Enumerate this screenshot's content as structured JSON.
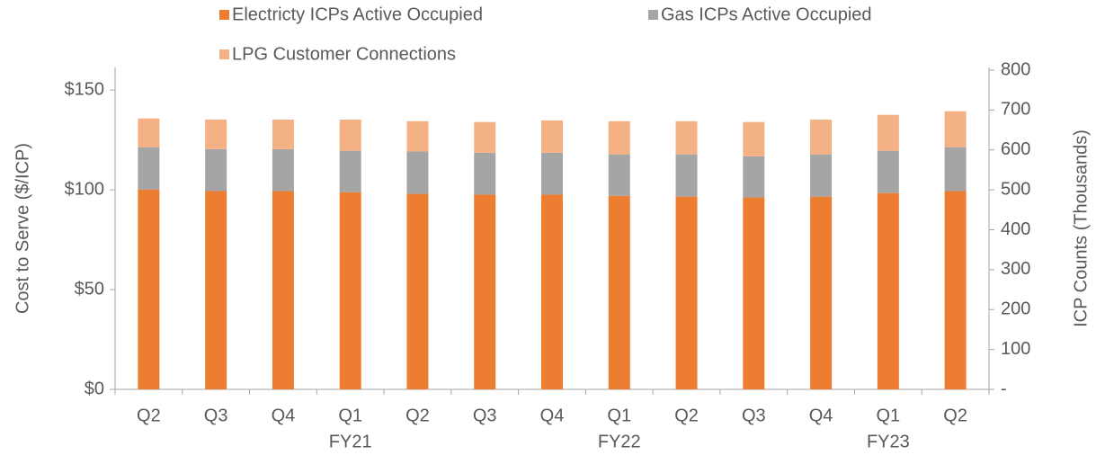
{
  "chart_data": {
    "type": "stacked_bar",
    "categories": [
      "Q2",
      "Q3",
      "Q4",
      "Q1",
      "Q2",
      "Q3",
      "Q4",
      "Q1",
      "Q2",
      "Q3",
      "Q4",
      "Q1",
      "Q2"
    ],
    "category_groups": [
      null,
      null,
      null,
      "FY21",
      null,
      null,
      null,
      "FY22",
      null,
      null,
      null,
      "FY23",
      null
    ],
    "series": [
      {
        "name": "Electricty ICPs Active Occupied",
        "color": "#ED7D31",
        "axis": "y2",
        "values": [
          501,
          497,
          497,
          494,
          490,
          488,
          488,
          485,
          483,
          481,
          483,
          492,
          497
        ]
      },
      {
        "name": "Gas ICPs Active Occupied",
        "color": "#A5A5A5",
        "axis": "y2",
        "values": [
          106,
          105,
          105,
          104,
          106,
          105,
          105,
          104,
          106,
          103,
          106,
          106,
          110
        ]
      },
      {
        "name": "LPG Customer Connections",
        "color": "#F4B183",
        "axis": "y2",
        "values": [
          72,
          74,
          74,
          78,
          76,
          77,
          81,
          83,
          83,
          86,
          87,
          90,
          90
        ]
      }
    ],
    "ylabel": "Cost to Serve ($/ICP)",
    "y2label": "ICP Counts (Thousands)",
    "ylim": [
      0,
      160
    ],
    "yticks": [
      {
        "value": 0,
        "label": "$0"
      },
      {
        "value": 50,
        "label": "$50"
      },
      {
        "value": 100,
        "label": "$100"
      },
      {
        "value": 150,
        "label": "$150"
      }
    ],
    "y2lim": [
      0,
      800
    ],
    "y2ticks": [
      {
        "value": 0,
        "label": "-"
      },
      100,
      200,
      300,
      400,
      500,
      600,
      700,
      800
    ],
    "legend": "top"
  }
}
